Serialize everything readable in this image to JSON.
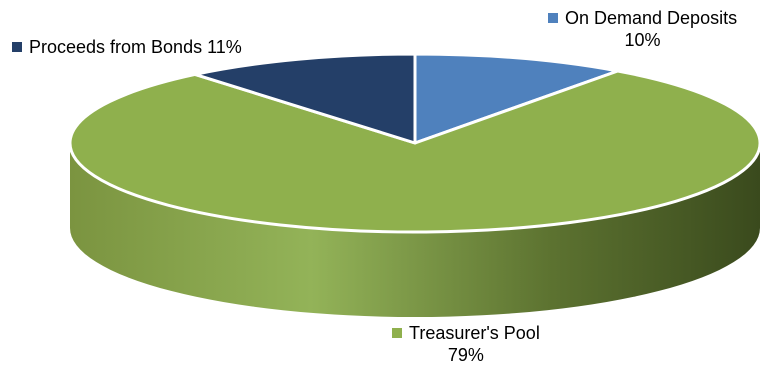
{
  "chart_data": {
    "type": "pie",
    "title": "",
    "categories": [
      "On Demand Deposits",
      "Treasurer's Pool",
      "Proceeds from Bonds"
    ],
    "values": [
      10,
      79,
      11
    ],
    "value_labels": [
      "10%",
      "79%",
      "11%"
    ],
    "colors": [
      "#4f81bd",
      "#8fb04d",
      "#243f68"
    ],
    "style": "3d-tilted",
    "legend": "none",
    "data_labels": "outside-with-category"
  }
}
